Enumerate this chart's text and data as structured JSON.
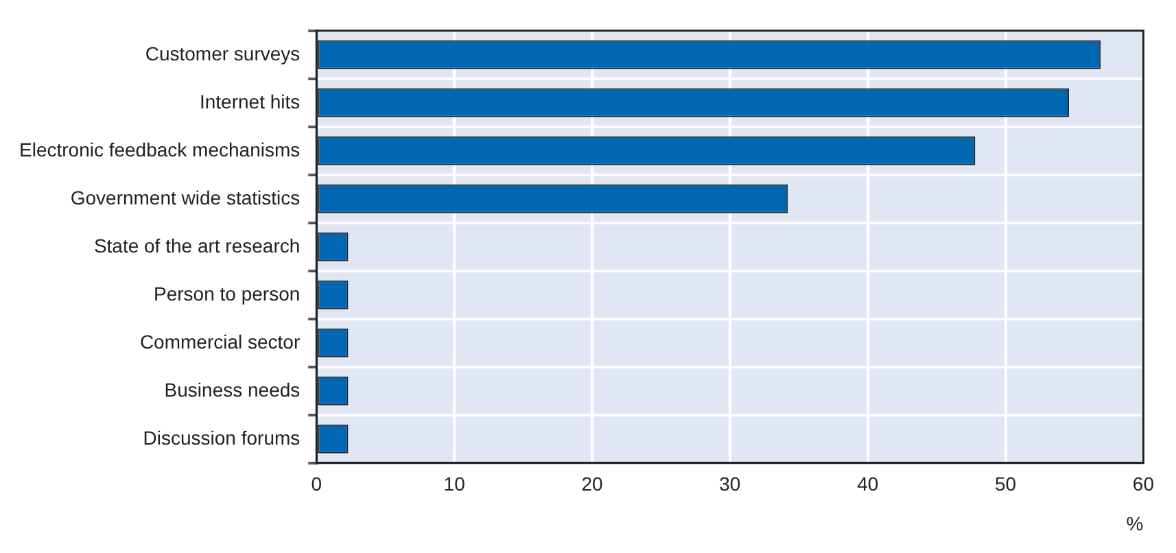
{
  "chart_data": {
    "type": "bar",
    "orientation": "horizontal",
    "categories": [
      "Customer surveys",
      "Internet hits",
      "Electronic feedback mechanisms",
      "Government wide statistics",
      "State of the art research",
      "Person to person",
      "Commercial sector",
      "Business needs",
      "Discussion forums"
    ],
    "values": [
      56.9,
      54.6,
      47.8,
      34.2,
      2.3,
      2.3,
      2.3,
      2.3,
      2.3
    ],
    "color": "#0068b3",
    "xlim": [
      0,
      60
    ],
    "xticks": [
      0,
      10,
      20,
      30,
      40,
      50,
      60
    ],
    "xlabel": "%",
    "grid": true,
    "legend": false
  }
}
